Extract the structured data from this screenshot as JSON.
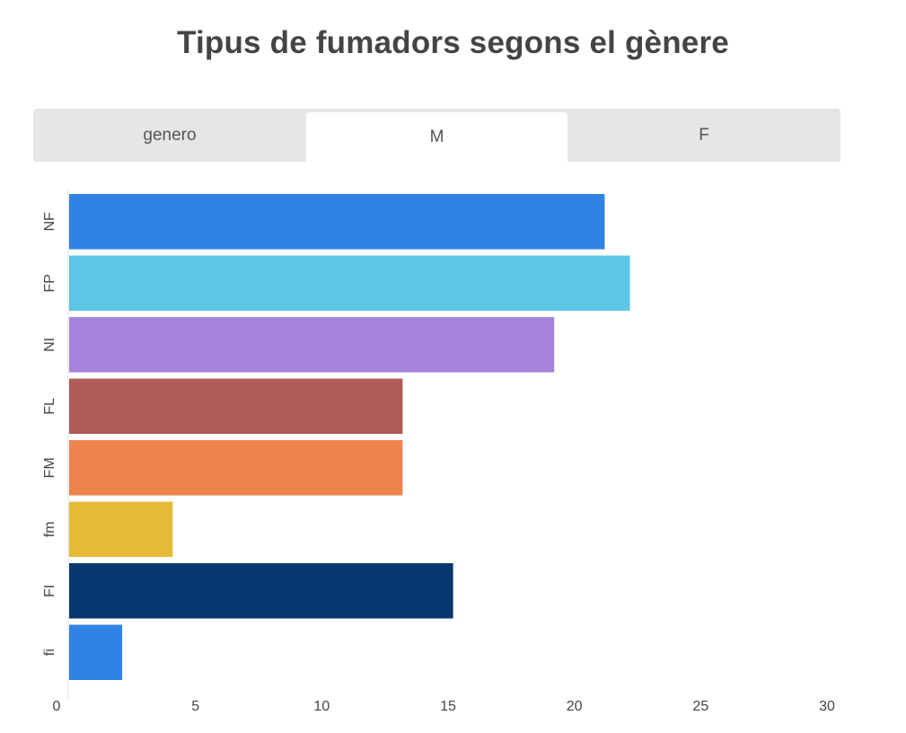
{
  "tabs": [
    {
      "label": "genero"
    },
    {
      "label": "M"
    },
    {
      "label": "F"
    }
  ],
  "active_tab": 1,
  "chart_data": {
    "type": "bar",
    "orientation": "horizontal",
    "title": "Tipus de fumadors segons el gènere",
    "xlabel": "",
    "ylabel": "",
    "categories": [
      "NF",
      "FP",
      "NI",
      "FL",
      "FM",
      "fm",
      "FI",
      "fi"
    ],
    "values": [
      21.2,
      22.2,
      19.2,
      13.2,
      13.2,
      4.1,
      15.2,
      2.1
    ],
    "colors": [
      "#2f83e4",
      "#5dc6e6",
      "#a583dd",
      "#b05a58",
      "#ef834f",
      "#e5ba36",
      "#07376f",
      "#2f83e4"
    ],
    "xlim": [
      0,
      30
    ],
    "xticks": [
      0,
      5,
      10,
      15,
      20,
      25,
      30
    ],
    "grid": false,
    "legend": "none"
  }
}
